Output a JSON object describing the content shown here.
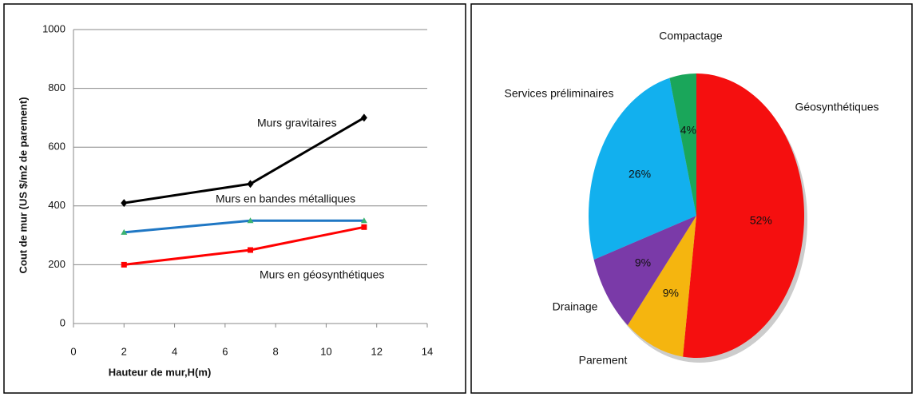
{
  "chart_data": [
    {
      "type": "line",
      "x_label": "Hauteur de mur,H(m)",
      "y_label": "Cout de  mur (US $/m2 de parement)",
      "x": [
        2,
        7,
        11.5
      ],
      "series": [
        {
          "name": "Murs gravitaires",
          "color": "#000000",
          "values": [
            410,
            475,
            700
          ]
        },
        {
          "name": "Murs en bandes métalliques",
          "color": "#1f77c4",
          "values": [
            310,
            350,
            350
          ]
        },
        {
          "name": "Murs en géosynthétiques",
          "color": "#ff0000",
          "values": [
            200,
            250,
            328
          ]
        }
      ],
      "xlim": [
        0,
        14
      ],
      "xticks": [
        0,
        2,
        4,
        6,
        8,
        10,
        12,
        14
      ],
      "ylim": [
        0,
        1000
      ],
      "yticks": [
        0,
        200,
        400,
        600,
        800,
        1000
      ],
      "grid": true
    },
    {
      "type": "pie",
      "categories": [
        "Géosynthétiques",
        "Parement",
        "Drainage",
        "Services préliminaires",
        "Compactage"
      ],
      "values": [
        52,
        9,
        9,
        26,
        4
      ],
      "value_labels": [
        "52%",
        "9%",
        "9%",
        "26%",
        "4%"
      ],
      "colors": [
        "#f50f0f",
        "#f5b50f",
        "#7a3aa8",
        "#12b0ee",
        "#1aa65a"
      ]
    }
  ]
}
